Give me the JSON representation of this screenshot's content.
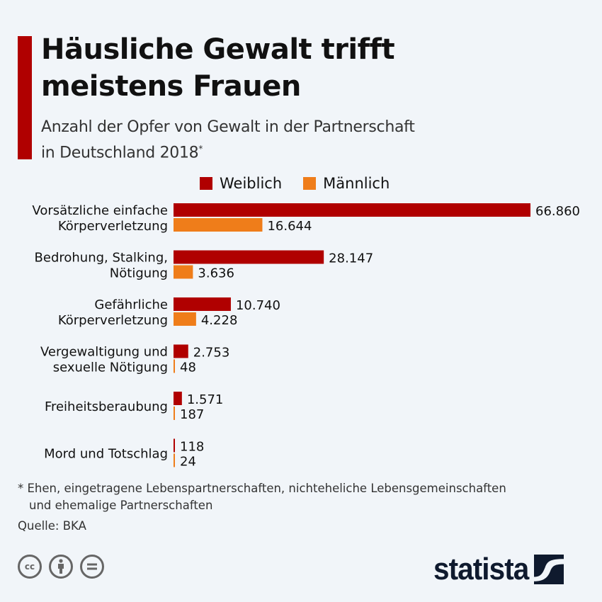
{
  "header": {
    "title_line1": "Häusliche Gewalt trifft",
    "title_line2": "meistens Frauen",
    "subtitle_line1": "Anzahl der Opfer von Gewalt in der Partnerschaft",
    "subtitle_line2": "in Deutschland 2018",
    "subtitle_marker": "*"
  },
  "colors": {
    "accent": "#b00000",
    "female": "#b00000",
    "male": "#ef7d1a",
    "background": "#f1f5f9",
    "logo": "#0f1a2e"
  },
  "chart_data": {
    "type": "bar",
    "orientation": "horizontal",
    "title": "Häusliche Gewalt trifft meistens Frauen",
    "subtitle": "Anzahl der Opfer von Gewalt in der Partnerschaft in Deutschland 2018*",
    "categories": [
      [
        "Vorsätzliche einfache",
        "Körperverletzung"
      ],
      [
        "Bedrohung, Stalking,",
        "Nötigung"
      ],
      [
        "Gefährliche",
        "Körperverletzung"
      ],
      [
        "Vergewaltigung und",
        "sexuelle Nötigung"
      ],
      [
        "Freiheitsberaubung"
      ],
      [
        "Mord und Totschlag"
      ]
    ],
    "series": [
      {
        "name": "Weiblich",
        "color": "#b00000",
        "values": [
          66860,
          28147,
          10740,
          2753,
          1571,
          118
        ],
        "labels": [
          "66.860",
          "28.147",
          "10.740",
          "2.753",
          "1.571",
          "118"
        ]
      },
      {
        "name": "Männlich",
        "color": "#ef7d1a",
        "values": [
          16644,
          3636,
          4228,
          48,
          187,
          24
        ],
        "labels": [
          "16.644",
          "3.636",
          "4.228",
          "48",
          "187",
          "24"
        ]
      }
    ],
    "xlim": [
      0,
      66860
    ],
    "grid": false,
    "legend_position": "top-center",
    "xlabel": "",
    "ylabel": ""
  },
  "legend": [
    {
      "label": "Weiblich"
    },
    {
      "label": "Männlich"
    }
  ],
  "footer": {
    "footnote_line1": "* Ehen, eingetragene Lebenspartnerschaften, nichteheliche Lebensgemeinschaften",
    "footnote_line2": "und ehemalige Partnerschaften",
    "source": "Quelle: BKA",
    "license_icons": [
      "cc-icon",
      "by-icon",
      "nd-icon"
    ],
    "cc_text": "cc",
    "logo_text": "statista"
  }
}
